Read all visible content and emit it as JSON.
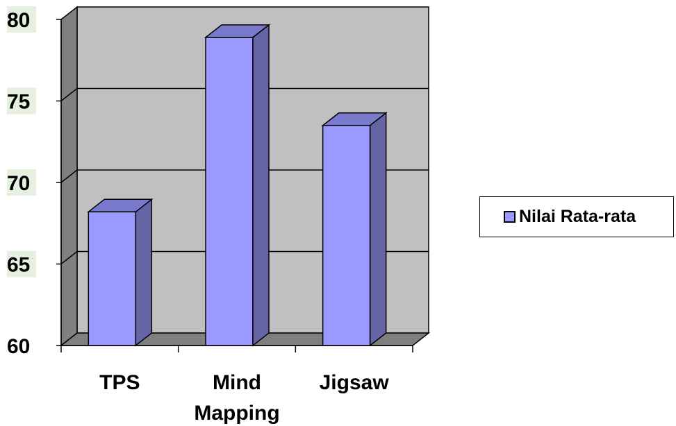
{
  "chart_data": {
    "type": "bar",
    "categories": [
      "TPS",
      "Mind Mapping",
      "Jigsaw"
    ],
    "category_label_lines": [
      [
        "TPS"
      ],
      [
        "Mind",
        "Mapping"
      ],
      [
        "Jigsaw"
      ]
    ],
    "series": [
      {
        "name": "Nilai Rata-rata",
        "values": [
          68.2,
          78.9,
          73.5
        ]
      }
    ],
    "ylim": [
      60,
      80
    ],
    "yticks": [
      "60",
      "65",
      "70",
      "75",
      "80"
    ],
    "title": "",
    "xlabel": "",
    "ylabel": "",
    "grid": true,
    "legend_position": "right",
    "style": "3d-column",
    "colors": {
      "bar_front": "#9999ff",
      "bar_side": "#6565a6",
      "bar_top": "#7a7acc",
      "wall_back": "#c0c0c0",
      "wall_side": "#808080",
      "floor": "#7f7f7f",
      "tick_label_highlight": "#e6f0e1"
    }
  },
  "legend": {
    "label": "Nilai Rata-rata"
  }
}
